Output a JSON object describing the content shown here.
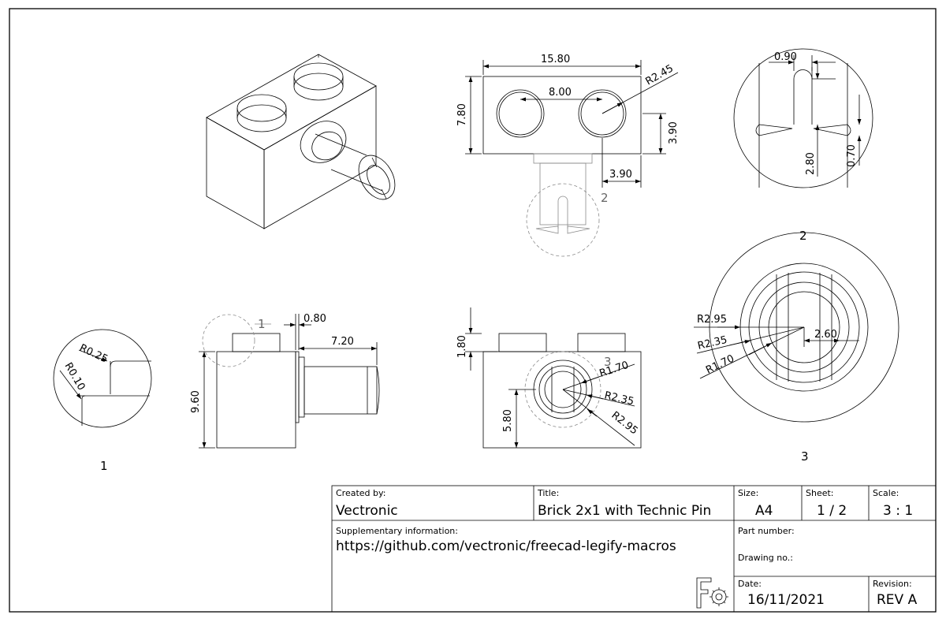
{
  "title_block": {
    "created_by_label": "Created by:",
    "created_by": "Vectronic",
    "title_label": "Title:",
    "title": "Brick 2x1 with Technic Pin",
    "size_label": "Size:",
    "size": "A4",
    "sheet_label": "Sheet:",
    "sheet": "1 / 2",
    "scale_label": "Scale:",
    "scale": "3 : 1",
    "supplementary_label": "Supplementary information:",
    "supplementary": "https://github.com/vectronic/freecad-legify-macros",
    "part_number_label": "Part number:",
    "drawing_no_label": "Drawing no.:",
    "date_label": "Date:",
    "date": "16/11/2021",
    "revision_label": "Revision:",
    "revision": "REV A",
    "logo_icon": "freecad-logo-icon"
  },
  "dimensions": {
    "top_width": "15.80",
    "top_height": "7.80",
    "top_spacing": "8.00",
    "top_radius": "R2.45",
    "top_offset_y": "3.90",
    "top_offset_x": "3.90",
    "detail2_width": "0.90",
    "detail2_length": "2.80",
    "detail2_depth": "0.70",
    "side_stud": "0.80",
    "side_pin": "7.20",
    "side_height": "9.60",
    "detail1_r1": "R0.25",
    "detail1_r2": "R0.10",
    "front_stud": "1.80",
    "front_pin_height": "5.80",
    "front_r1": "R1.70",
    "front_r2": "R2.35",
    "front_r3": "R2.95",
    "detail3_r1": "R2.95",
    "detail3_r2": "R2.35",
    "detail3_r3": "R1.70",
    "detail3_d": "2.60"
  },
  "labels": {
    "detail1": "1",
    "detail2": "2",
    "detail3": "3",
    "ref1": "1",
    "ref2": "2",
    "ref3": "3"
  }
}
